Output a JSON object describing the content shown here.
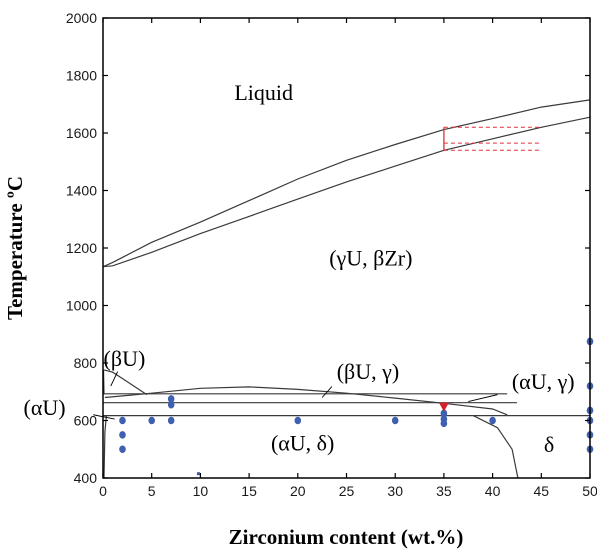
{
  "chart_data": {
    "type": "scatter",
    "title": "",
    "xlabel": "Zirconium content (wt.%)",
    "ylabel": "Temperature ºC",
    "xlim": [
      0,
      50
    ],
    "ylim": [
      400,
      2000
    ],
    "x_ticks": [
      0,
      5,
      10,
      15,
      20,
      25,
      30,
      35,
      40,
      45,
      50
    ],
    "y_ticks": [
      400,
      600,
      800,
      1000,
      1200,
      1400,
      1600,
      1800,
      2000
    ],
    "grid": false,
    "region_labels": [
      {
        "text": "Liquid",
        "x": 16.5,
        "y": 1715
      },
      {
        "text": "(γU, βZr)",
        "x": 27.5,
        "y": 1140
      },
      {
        "text": "(βU)",
        "x": 2.2,
        "y": 790
      },
      {
        "text": "(αU)",
        "x": -6.0,
        "y": 620
      },
      {
        "text": "(βU, γ)",
        "x": 27.2,
        "y": 745
      },
      {
        "text": "(αU, γ)",
        "x": 45.2,
        "y": 710
      },
      {
        "text": "(αU, δ)",
        "x": 20.5,
        "y": 495
      },
      {
        "text": "δ",
        "x": 45.8,
        "y": 490
      }
    ],
    "boundaries": {
      "liquidus": [
        [
          0,
          1135
        ],
        [
          1,
          1150
        ],
        [
          5,
          1220
        ],
        [
          10,
          1290
        ],
        [
          15,
          1365
        ],
        [
          20,
          1440
        ],
        [
          25,
          1505
        ],
        [
          30,
          1560
        ],
        [
          35,
          1612
        ],
        [
          40,
          1650
        ],
        [
          45,
          1690
        ],
        [
          50,
          1715
        ]
      ],
      "solidus": [
        [
          0,
          1135
        ],
        [
          1,
          1138
        ],
        [
          5,
          1185
        ],
        [
          10,
          1250
        ],
        [
          15,
          1310
        ],
        [
          20,
          1370
        ],
        [
          25,
          1430
        ],
        [
          30,
          1485
        ],
        [
          35,
          1540
        ],
        [
          40,
          1580
        ],
        [
          45,
          1620
        ],
        [
          50,
          1655
        ]
      ],
      "gamma_solvus": [
        [
          0.2,
          680
        ],
        [
          5,
          695
        ],
        [
          10,
          712
        ],
        [
          15,
          717
        ],
        [
          20,
          708
        ],
        [
          25,
          695
        ],
        [
          30,
          678
        ],
        [
          35,
          660
        ],
        [
          40,
          640
        ],
        [
          41.5,
          620
        ]
      ],
      "beta_U_region": [
        [
          0.1,
          776
        ],
        [
          1,
          768
        ],
        [
          2.5,
          735
        ],
        [
          4.5,
          690
        ]
      ],
      "monotectoid_line": [
        [
          0,
          693
        ],
        [
          41.5,
          693
        ]
      ],
      "eutectoid_line": [
        [
          0,
          662
        ],
        [
          42.5,
          662
        ]
      ],
      "delta_line": [
        [
          0,
          617
        ],
        [
          50,
          617
        ]
      ],
      "delta_boundary": [
        [
          38,
          617
        ],
        [
          40.5,
          575
        ],
        [
          42,
          500
        ],
        [
          42.6,
          400
        ]
      ],
      "alpha_U_solvus": [
        [
          0.35,
          617
        ],
        [
          0.2,
          560
        ],
        [
          0.1,
          400
        ]
      ],
      "beta_alpha_left": [
        [
          0.05,
          776
        ],
        [
          0.1,
          693
        ]
      ]
    },
    "tie_line_box": {
      "x": [
        35,
        45
      ],
      "y": [
        1540,
        1620
      ],
      "mid_y": 1565
    },
    "series": [
      {
        "name": "",
        "color": "#3f5fb0",
        "points": [
          [
            2,
            600
          ],
          [
            2,
            550
          ],
          [
            2,
            500
          ],
          [
            5,
            600
          ],
          [
            7,
            600
          ],
          [
            7,
            655
          ],
          [
            7,
            675
          ],
          [
            20,
            600
          ],
          [
            30,
            600
          ],
          [
            35,
            590
          ],
          [
            35,
            605
          ],
          [
            35,
            625
          ],
          [
            40,
            600
          ],
          [
            50,
            875
          ],
          [
            50,
            720
          ],
          [
            50,
            635
          ],
          [
            50,
            600
          ],
          [
            50,
            550
          ],
          [
            50,
            500
          ]
        ]
      },
      {
        "name": "",
        "color": "#d4202a",
        "points": [
          [
            35,
            645
          ]
        ]
      }
    ],
    "small_marker": {
      "x": 9.8,
      "y": 415
    }
  }
}
